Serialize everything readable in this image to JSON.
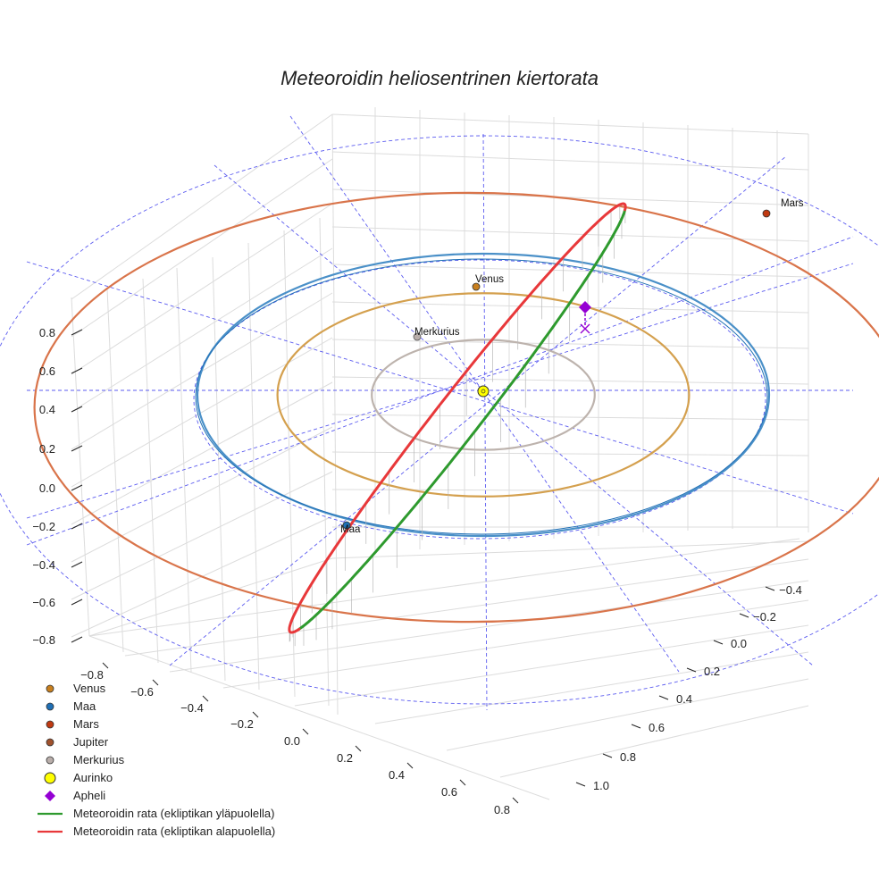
{
  "chart_data": {
    "type": "scatter",
    "projection": "3d",
    "title": "Meteoroidin heliosentrinen kiertorata",
    "xlabel": "",
    "ylabel": "",
    "zlabel": "",
    "x_ticks": [
      "−0.8",
      "−0.6",
      "−0.4",
      "−0.2",
      "0.0",
      "0.2",
      "0.4",
      "0.6",
      "0.8"
    ],
    "y_ticks": [
      "−0.4",
      "−0.2",
      "0.0",
      "0.2",
      "0.4",
      "0.6",
      "0.8",
      "1.0"
    ],
    "z_ticks": [
      "0.8",
      "0.6",
      "0.4",
      "0.2",
      "0.0",
      "−0.2",
      "−0.4",
      "−0.6",
      "−0.8"
    ],
    "grid": true,
    "legend_position": "bottom-left",
    "series": [
      {
        "name": "Venus",
        "kind": "planet",
        "color": "#c87f1e",
        "orbit_color": "#d4a04e",
        "orbit_radius_au": 0.72,
        "point_au": [
          0.0,
          -0.72,
          0.0
        ]
      },
      {
        "name": "Maa",
        "kind": "planet",
        "color": "#1f6fb5",
        "orbit_color": "#4a90c8",
        "orbit_radius_au": 1.0,
        "point_au": [
          -0.4,
          0.92,
          0.0
        ]
      },
      {
        "name": "Mars",
        "kind": "planet",
        "color": "#c03a12",
        "orbit_color": "#d9744a",
        "orbit_radius_au": 1.52,
        "point_au": [
          1.0,
          -1.15,
          0.0
        ]
      },
      {
        "name": "Jupiter",
        "kind": "planet",
        "color": "#a0522d"
      },
      {
        "name": "Merkurius",
        "kind": "planet",
        "color": "#b9aeaa",
        "orbit_color": "#bdb3ad",
        "orbit_radius_au": 0.39,
        "point_au": [
          -0.2,
          -0.34,
          0.0
        ]
      },
      {
        "name": "Aurinko",
        "kind": "sun",
        "color": "#ffff00",
        "point_au": [
          0.0,
          0.0,
          0.0
        ]
      },
      {
        "name": "Apheli",
        "kind": "marker",
        "color": "#9400d3",
        "point_au": [
          0.33,
          -0.58,
          0.08
        ]
      },
      {
        "name": "Meteoroidin rata (ekliptikan yläpuolella)",
        "kind": "orbit",
        "color": "#2e9a2e"
      },
      {
        "name": "Meteoroidin rata (ekliptikan alapuolella)",
        "kind": "orbit",
        "color": "#e8383a"
      }
    ],
    "meteoroid_orbit": {
      "center_au": [
        -0.12,
        0.0
      ],
      "semi_axes_au": [
        0.95,
        0.16
      ],
      "rotation_deg": -52,
      "perihelion_near": "Maa",
      "aphelion_au": 0.95
    }
  },
  "labels": {
    "venus": "Venus",
    "maa": "Maa",
    "mars": "Mars",
    "merkurius": "Merkurius"
  },
  "legend": [
    {
      "label": "Venus"
    },
    {
      "label": "Maa"
    },
    {
      "label": "Mars"
    },
    {
      "label": "Jupiter"
    },
    {
      "label": "Merkurius"
    },
    {
      "label": "Aurinko"
    },
    {
      "label": "Apheli"
    },
    {
      "label": "Meteoroidin rata (ekliptikan yläpuolella)"
    },
    {
      "label": "Meteoroidin rata (ekliptikan alapuolella)"
    }
  ]
}
